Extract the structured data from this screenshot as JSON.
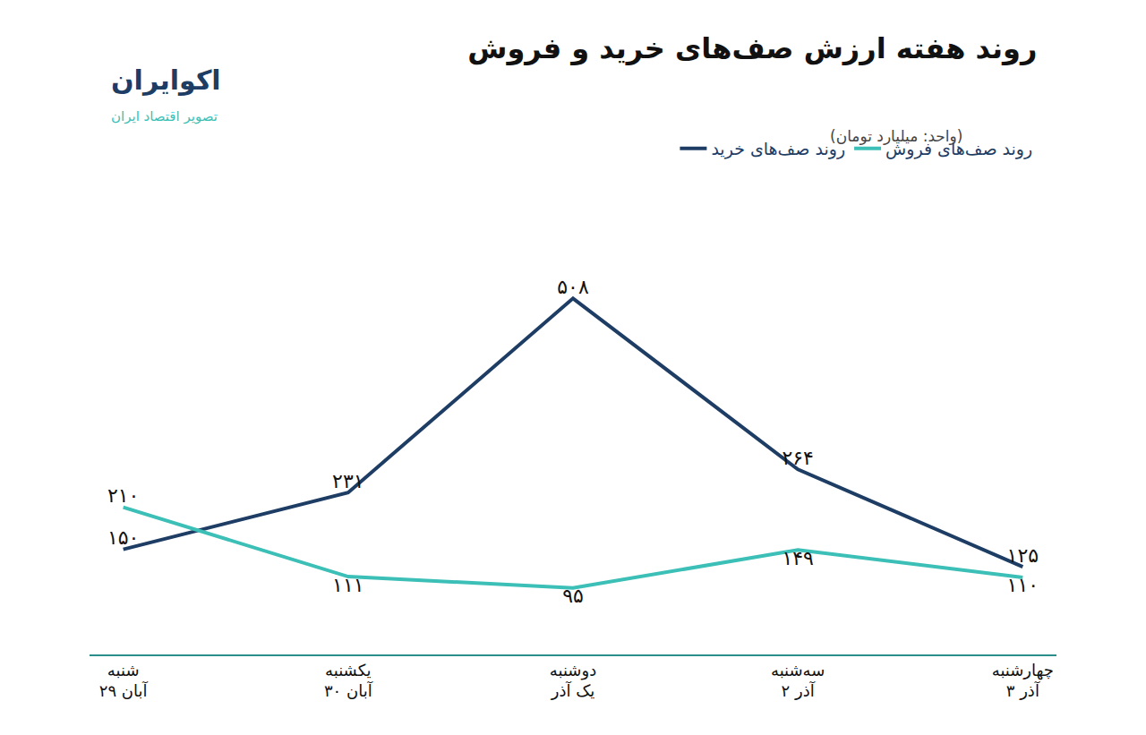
{
  "chart_data": {
    "type": "line",
    "title": "روند هفته ارزش صف‌های خرید و فروش",
    "subtitle": "(واحد: میلیارد تومان)",
    "annotations": [
      "اکوایران",
      "تصویر اقتصاد ایران"
    ],
    "categories": [
      "شنبه\n۲۹ آبان",
      "یکشنبه\n۳۰ آبان",
      "دوشنبه\nیک آذر",
      "سه‌شنبه\n۲ آذر",
      "چهارشنبه\n۳ آذر"
    ],
    "series": [
      {
        "name": "روند صف‌های خرید",
        "color": "#1e3d64",
        "line_style": "solid",
        "values": [
          150,
          231,
          508,
          264,
          125
        ],
        "value_labels": [
          "۱۵۰",
          "۲۳۱",
          "۵۰۸",
          "۲۶۴",
          "۱۲۵"
        ]
      },
      {
        "name": "روند صف‌های فروش",
        "color": "#3bbfb6",
        "line_style": "solid",
        "values": [
          210,
          111,
          95,
          149,
          110
        ],
        "value_labels": [
          "۲۱۰",
          "۱۱۱",
          "۹۵",
          "۱۴۹",
          "۱۱۰"
        ]
      }
    ],
    "ylim": [
      0,
      640
    ],
    "data_labels": true,
    "tick_labels": "x",
    "grid": false,
    "legend": "top"
  }
}
